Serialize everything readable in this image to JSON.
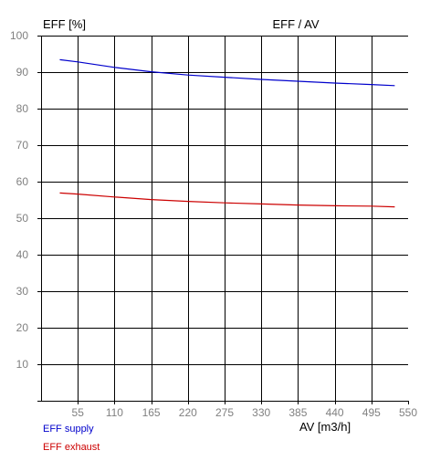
{
  "chart_data": {
    "type": "line",
    "title": "EFF / AV",
    "ylabel": "EFF [%]",
    "xlabel": "AV [m3/h]",
    "xlim": [
      0,
      550
    ],
    "ylim": [
      0,
      100
    ],
    "xticks": [
      55,
      110,
      165,
      220,
      275,
      330,
      385,
      440,
      495,
      550
    ],
    "yticks": [
      10,
      20,
      30,
      40,
      50,
      60,
      70,
      80,
      90,
      100
    ],
    "grid": true,
    "legend": "bottom-left",
    "series": [
      {
        "name": "EFF supply",
        "color": "#0000cc",
        "x": [
          28,
          55,
          110,
          165,
          220,
          275,
          330,
          385,
          440,
          495,
          530
        ],
        "y": [
          93.4,
          92.8,
          91.3,
          90.1,
          89.2,
          88.6,
          88.0,
          87.5,
          87.0,
          86.6,
          86.3
        ]
      },
      {
        "name": "EFF exhaust",
        "color": "#cc0000",
        "x": [
          28,
          55,
          110,
          165,
          220,
          275,
          330,
          385,
          440,
          495,
          530
        ],
        "y": [
          56.9,
          56.6,
          55.8,
          55.1,
          54.6,
          54.2,
          53.9,
          53.6,
          53.4,
          53.3,
          53.1
        ]
      }
    ]
  }
}
